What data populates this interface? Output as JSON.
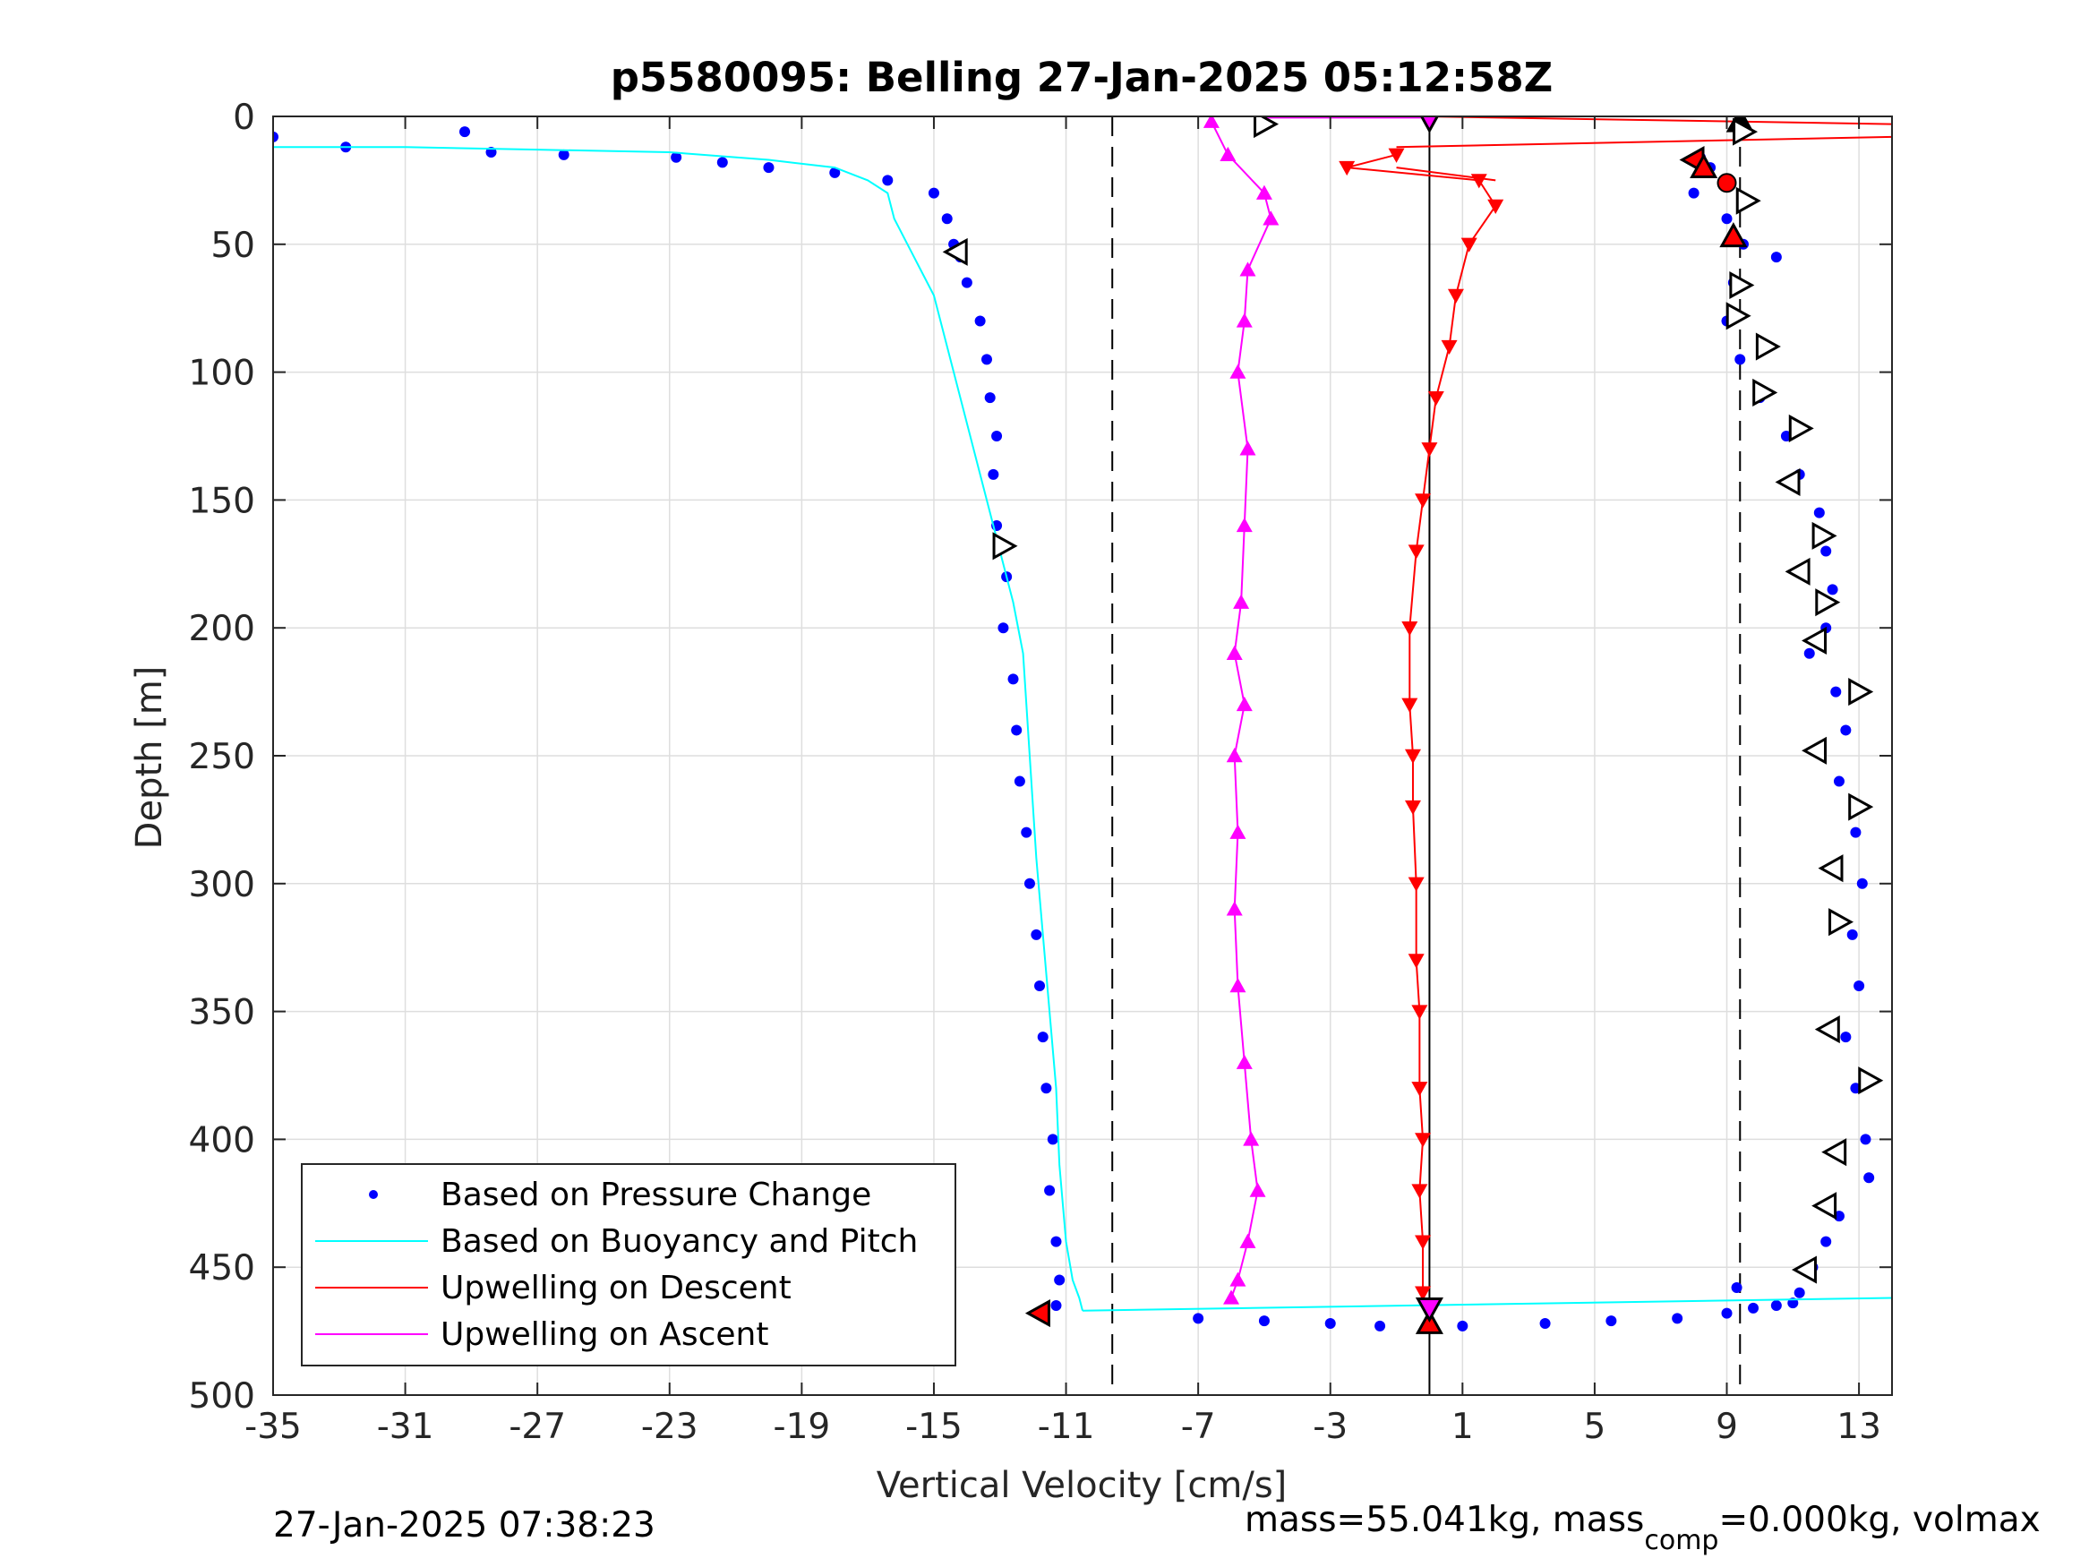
{
  "chart_data": {
    "type": "scatter",
    "title": "p5580095: Belling 27-Jan-2025 05:12:58Z",
    "xlabel": "Vertical Velocity [cm/s]",
    "ylabel": "Depth [m]",
    "xlim": [
      -35,
      14
    ],
    "ylim": [
      0,
      500
    ],
    "y_reversed": true,
    "grid": true,
    "legend_position": "bottom-left",
    "x_ticks": [
      "-35",
      "-31",
      "-27",
      "-23",
      "-19",
      "-15",
      "-11",
      "-7",
      "-3",
      "1",
      "5",
      "9",
      "13"
    ],
    "y_ticks": [
      "0",
      "50",
      "100",
      "150",
      "200",
      "250",
      "300",
      "350",
      "400",
      "450",
      "500"
    ],
    "legend": [
      {
        "label": "Based on Pressure Change",
        "style": "dots",
        "color": "#0000ff"
      },
      {
        "label": "Based on Buoyancy and Pitch",
        "style": "line",
        "color": "#00ffff"
      },
      {
        "label": "Upwelling on Descent",
        "style": "line",
        "color": "#ff0000"
      },
      {
        "label": "Upwelling on Ascent",
        "style": "line",
        "color": "#ff00ff"
      }
    ],
    "series": [
      {
        "name": "Based on Pressure Change",
        "kind": "dots",
        "color": "#0000ff",
        "note": "descent profile",
        "x": [
          -35.0,
          -32.8,
          -29.2,
          -28.4,
          -26.2,
          -22.8,
          -21.4,
          -20.0,
          -18.0,
          -16.4,
          -15.0,
          -14.6,
          -14.4,
          -14.2,
          -14.0,
          -13.6,
          -13.4,
          -13.3,
          -13.1,
          -13.2,
          -13.1,
          -12.8,
          -12.9,
          -12.6,
          -12.5,
          -12.4,
          -12.2,
          -12.1,
          -11.9,
          -11.8,
          -11.7,
          -11.6,
          -11.4,
          -11.5,
          -11.3,
          -11.2,
          -11.3
        ],
        "y": [
          8,
          12,
          6,
          14,
          15,
          16,
          18,
          20,
          22,
          25,
          30,
          40,
          50,
          55,
          65,
          80,
          95,
          110,
          125,
          140,
          160,
          180,
          200,
          220,
          240,
          260,
          280,
          300,
          320,
          340,
          360,
          380,
          400,
          420,
          440,
          455,
          465
        ]
      },
      {
        "name": "Based on Pressure Change",
        "kind": "dots",
        "color": "#0000ff",
        "note": "ascent profile",
        "x": [
          -7.0,
          -5.0,
          -3.0,
          -1.5,
          1.0,
          3.5,
          5.5,
          7.5,
          9.0,
          9.8,
          10.5,
          11.0,
          9.3,
          8.5,
          8.2,
          8.0,
          9.0,
          9.5,
          10.5,
          9.2,
          9.0,
          9.4,
          10.0,
          10.8,
          11.2,
          11.8,
          12.0,
          12.2,
          12.0,
          11.5,
          12.3,
          12.6,
          12.4,
          12.9,
          13.1,
          12.8,
          13.0,
          12.6,
          12.9,
          13.2,
          13.3,
          12.4,
          12.0,
          11.6,
          11.2
        ],
        "y": [
          470,
          471,
          472,
          473,
          473,
          472,
          471,
          470,
          468,
          466,
          465,
          464,
          458,
          20,
          16,
          30,
          40,
          50,
          55,
          65,
          80,
          95,
          110,
          125,
          140,
          155,
          170,
          185,
          200,
          210,
          225,
          240,
          260,
          280,
          300,
          320,
          340,
          360,
          380,
          400,
          415,
          430,
          440,
          450,
          460
        ]
      },
      {
        "name": "Based on Buoyancy and Pitch",
        "kind": "line",
        "color": "#00ffff",
        "x": [
          -35.0,
          -31.0,
          -27.0,
          -23.0,
          -20.0,
          -18.0,
          -17.0,
          -16.4,
          -16.2,
          -15.8,
          -15.4,
          -15.0,
          -14.6,
          -14.2,
          -13.8,
          -13.4,
          -13.0,
          -12.6,
          -12.3,
          -12.1,
          -11.9,
          -11.7,
          -11.5,
          -11.3,
          -11.2,
          -11.0,
          -10.8,
          -10.6,
          -10.5
        ],
        "y": [
          12,
          12,
          13,
          14,
          17,
          20,
          25,
          30,
          40,
          50,
          60,
          70,
          90,
          110,
          130,
          150,
          170,
          190,
          210,
          250,
          290,
          320,
          350,
          380,
          410,
          440,
          455,
          462,
          467
        ]
      },
      {
        "name": "Based on Buoyancy and Pitch",
        "kind": "line",
        "color": "#00ffff",
        "note": "bottom turnaround segment",
        "x": [
          -10.5,
          14.0
        ],
        "y": [
          467,
          462
        ]
      },
      {
        "name": "Upwelling on Descent",
        "kind": "triangle-down",
        "color": "#ff0000",
        "x": [
          -1.0,
          -2.5,
          1.5,
          2.0,
          1.2,
          0.8,
          0.6,
          0.2,
          0.0,
          -0.2,
          -0.4,
          -0.6,
          -0.6,
          -0.5,
          -0.5,
          -0.4,
          -0.4,
          -0.3,
          -0.3,
          -0.2,
          -0.3,
          -0.2,
          -0.2
        ],
        "y": [
          15,
          20,
          25,
          35,
          50,
          70,
          90,
          110,
          130,
          150,
          170,
          200,
          230,
          250,
          270,
          300,
          330,
          350,
          380,
          400,
          420,
          440,
          460
        ]
      },
      {
        "name": "Upwelling on Ascent",
        "kind": "triangle-up",
        "color": "#ff00ff",
        "x": [
          -6.6,
          -6.1,
          -5.0,
          -4.8,
          -5.5,
          -5.6,
          -5.8,
          -5.5,
          -5.6,
          -5.7,
          -5.9,
          -5.6,
          -5.9,
          -5.8,
          -5.9,
          -5.8,
          -5.6,
          -5.4,
          -5.2,
          -5.5,
          -5.8,
          -6.0
        ],
        "y": [
          2,
          15,
          30,
          40,
          60,
          80,
          100,
          130,
          160,
          190,
          210,
          230,
          250,
          280,
          310,
          340,
          370,
          400,
          420,
          440,
          455,
          462
        ]
      },
      {
        "name": "Upwelling on Ascent",
        "kind": "line",
        "color": "#ff00ff",
        "note": "surface connector at 0 m",
        "x": [
          -5.0,
          0.0
        ],
        "y": [
          0.5,
          0.5
        ]
      }
    ],
    "red_surface_lines": [
      {
        "x": [
          -0.2,
          14.0
        ],
        "y": [
          0,
          3
        ]
      },
      {
        "x": [
          -1.0,
          14.0
        ],
        "y": [
          12,
          8
        ]
      },
      {
        "x": [
          -1.0,
          2.0
        ],
        "y": [
          20,
          25
        ]
      }
    ],
    "vertical_lines": [
      {
        "x": -9.6,
        "style": "dashed"
      },
      {
        "x": 9.4,
        "style": "dashed"
      },
      {
        "x": 0.0,
        "style": "solid"
      }
    ],
    "markers": [
      {
        "x": -5.0,
        "y": 3,
        "shape": "triangle-right",
        "fill": "#ffffff"
      },
      {
        "x": 9.4,
        "y": 2,
        "shape": "triangle-up",
        "fill": "#000000"
      },
      {
        "x": 9.5,
        "y": 6,
        "shape": "triangle-right",
        "fill": "#ffffff"
      },
      {
        "x": 8.0,
        "y": 17,
        "shape": "triangle-left",
        "fill": "#ff0000"
      },
      {
        "x": 8.3,
        "y": 20,
        "shape": "triangle-up",
        "fill": "#ff0000"
      },
      {
        "x": 9.0,
        "y": 26,
        "shape": "circle",
        "fill": "#ff0000"
      },
      {
        "x": 9.6,
        "y": 33,
        "shape": "triangle-right",
        "fill": "#ffffff"
      },
      {
        "x": 9.2,
        "y": 47,
        "shape": "triangle-up",
        "fill": "#ff0000"
      },
      {
        "x": 9.4,
        "y": 66,
        "shape": "triangle-right",
        "fill": "#ffffff"
      },
      {
        "x": 9.3,
        "y": 78,
        "shape": "triangle-right",
        "fill": "#ffffff"
      },
      {
        "x": 10.2,
        "y": 90,
        "shape": "triangle-right",
        "fill": "#ffffff"
      },
      {
        "x": 10.1,
        "y": 108,
        "shape": "triangle-right",
        "fill": "#ffffff"
      },
      {
        "x": 11.2,
        "y": 122,
        "shape": "triangle-right",
        "fill": "#ffffff"
      },
      {
        "x": 10.9,
        "y": 143,
        "shape": "triangle-left",
        "fill": "#ffffff"
      },
      {
        "x": 11.9,
        "y": 164,
        "shape": "triangle-right",
        "fill": "#ffffff"
      },
      {
        "x": 11.2,
        "y": 178,
        "shape": "triangle-left",
        "fill": "#ffffff"
      },
      {
        "x": 12.0,
        "y": 190,
        "shape": "triangle-right",
        "fill": "#ffffff"
      },
      {
        "x": 11.7,
        "y": 205,
        "shape": "triangle-left",
        "fill": "#ffffff"
      },
      {
        "x": 13.0,
        "y": 225,
        "shape": "triangle-right",
        "fill": "#ffffff"
      },
      {
        "x": 11.7,
        "y": 248,
        "shape": "triangle-left",
        "fill": "#ffffff"
      },
      {
        "x": 13.0,
        "y": 270,
        "shape": "triangle-right",
        "fill": "#ffffff"
      },
      {
        "x": 12.2,
        "y": 294,
        "shape": "triangle-left",
        "fill": "#ffffff"
      },
      {
        "x": 12.4,
        "y": 315,
        "shape": "triangle-right",
        "fill": "#ffffff"
      },
      {
        "x": 12.1,
        "y": 357,
        "shape": "triangle-left",
        "fill": "#ffffff"
      },
      {
        "x": 13.3,
        "y": 377,
        "shape": "triangle-right",
        "fill": "#ffffff"
      },
      {
        "x": 12.3,
        "y": 405,
        "shape": "triangle-left",
        "fill": "#ffffff"
      },
      {
        "x": 12.0,
        "y": 426,
        "shape": "triangle-left",
        "fill": "#ffffff"
      },
      {
        "x": 11.4,
        "y": 451,
        "shape": "triangle-left",
        "fill": "#ffffff"
      },
      {
        "x": -14.3,
        "y": 53,
        "shape": "triangle-left",
        "fill": "#ffffff"
      },
      {
        "x": -12.9,
        "y": 168,
        "shape": "triangle-right",
        "fill": "#ffffff"
      },
      {
        "x": -11.8,
        "y": 468,
        "shape": "triangle-left",
        "fill": "#ff0000"
      },
      {
        "x": 0.0,
        "y": 472,
        "shape": "triangle-up",
        "fill": "#ff0000"
      },
      {
        "x": 0.0,
        "y": 466,
        "shape": "triangle-down",
        "fill": "#ff00ff"
      },
      {
        "x": 0.0,
        "y": 1,
        "shape": "triangle-down",
        "fill": "#ff00ff"
      }
    ]
  },
  "footer": {
    "timestamp": "27-Jan-2025 07:38:23",
    "info_main": "mass=55.041kg, mass",
    "info_sub": "comp",
    "info_tail": "=0.000kg, volmax"
  }
}
